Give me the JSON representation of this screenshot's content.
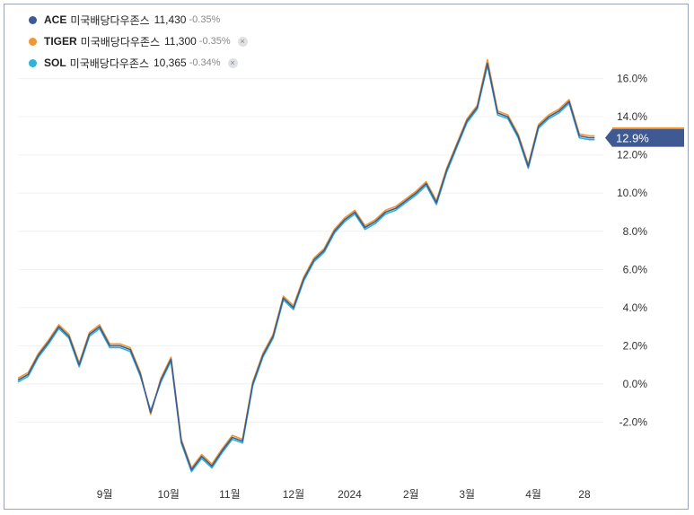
{
  "legend": [
    {
      "name": "ACE",
      "kname": "미국배당다우존스",
      "price": "11,430",
      "change": "-0.35%",
      "color": "#3f5a92",
      "removable": false
    },
    {
      "name": "TIGER",
      "kname": "미국배당다우존스",
      "price": "11,300",
      "change": "-0.35%",
      "color": "#f0972f",
      "removable": true
    },
    {
      "name": "SOL",
      "kname": "미국배당다우존스",
      "price": "10,365",
      "change": "-0.34%",
      "color": "#2fb3d6",
      "removable": true
    }
  ],
  "remove_glyph": "×",
  "current_label": "12.9%",
  "current_label_color": "#3f5a92",
  "chart_data": {
    "type": "line",
    "y_unit": "%",
    "y_ticks": [
      "16.0%",
      "14.0%",
      "12.0%",
      "10.0%",
      "8.0%",
      "6.0%",
      "4.0%",
      "2.0%",
      "0.0%",
      "-2.0%"
    ],
    "y_tick_values": [
      16,
      14,
      12,
      10,
      8,
      6,
      4,
      2,
      0,
      -2
    ],
    "ylim": [
      -4.8,
      17.3
    ],
    "x_ticks": [
      "9월",
      "10월",
      "11월",
      "12월",
      "2024",
      "2월",
      "3월",
      "4월",
      "28"
    ],
    "x_tick_values": [
      17,
      29.5,
      41.5,
      54,
      65,
      77,
      88,
      101,
      111
    ],
    "xlim": [
      0,
      114
    ],
    "grid": true,
    "series": [
      {
        "name": "ACE 미국배당다우존스",
        "color": "#3f5a92",
        "x": [
          0,
          2,
          4,
          6,
          8,
          10,
          12,
          14,
          16,
          18,
          20,
          22,
          24,
          26,
          28,
          30,
          32,
          34,
          36,
          38,
          40,
          42,
          44,
          46,
          48,
          50,
          52,
          54,
          56,
          58,
          60,
          62,
          64,
          66,
          68,
          70,
          72,
          74,
          76,
          78,
          80,
          82,
          84,
          86,
          88,
          90,
          92,
          94,
          96,
          98,
          100,
          102,
          104,
          106,
          108,
          110,
          112,
          113
        ],
        "y": [
          0.2,
          0.5,
          1.5,
          2.2,
          3.0,
          2.5,
          1.0,
          2.6,
          3.0,
          2.0,
          2.0,
          1.8,
          0.5,
          -1.5,
          0.2,
          1.3,
          -3.0,
          -4.5,
          -3.8,
          -4.3,
          -3.5,
          -2.8,
          -3.0,
          0.0,
          1.5,
          2.5,
          4.5,
          4.0,
          5.5,
          6.5,
          7.0,
          8.0,
          8.6,
          9.0,
          8.2,
          8.5,
          9.0,
          9.2,
          9.6,
          10.0,
          10.5,
          9.5,
          11.2,
          12.5,
          13.8,
          14.5,
          16.8,
          14.2,
          14.0,
          13.0,
          11.4,
          13.5,
          14.0,
          14.3,
          14.8,
          13.0,
          12.9,
          12.9
        ]
      },
      {
        "name": "TIGER 미국배당다우존스",
        "color": "#f0972f",
        "x": [
          0,
          2,
          4,
          6,
          8,
          10,
          12,
          14,
          16,
          18,
          20,
          22,
          24,
          26,
          28,
          30,
          32,
          34,
          36,
          38,
          40,
          42,
          44,
          46,
          48,
          50,
          52,
          54,
          56,
          58,
          60,
          62,
          64,
          66,
          68,
          70,
          72,
          74,
          76,
          78,
          80,
          82,
          84,
          86,
          88,
          90,
          92,
          94,
          96,
          98,
          100,
          102,
          104,
          106,
          108,
          110,
          112,
          113
        ],
        "y": [
          0.3,
          0.6,
          1.6,
          2.3,
          3.1,
          2.6,
          1.1,
          2.7,
          3.1,
          2.1,
          2.1,
          1.9,
          0.6,
          -1.6,
          0.3,
          1.4,
          -2.9,
          -4.4,
          -3.7,
          -4.2,
          -3.4,
          -2.7,
          -2.9,
          0.1,
          1.6,
          2.6,
          4.6,
          4.1,
          5.6,
          6.6,
          7.1,
          8.1,
          8.7,
          9.1,
          8.3,
          8.6,
          9.1,
          9.3,
          9.7,
          10.1,
          10.6,
          9.6,
          11.3,
          12.6,
          13.9,
          14.6,
          17.0,
          14.3,
          14.1,
          13.1,
          11.5,
          13.6,
          14.1,
          14.4,
          14.9,
          13.1,
          13.0,
          13.0
        ]
      },
      {
        "name": "SOL 미국배당다우존스",
        "color": "#2fb3d6",
        "x": [
          0,
          2,
          4,
          6,
          8,
          10,
          12,
          14,
          16,
          18,
          20,
          22,
          24,
          26,
          28,
          30,
          32,
          34,
          36,
          38,
          40,
          42,
          44,
          46,
          48,
          50,
          52,
          54,
          56,
          58,
          60,
          62,
          64,
          66,
          68,
          70,
          72,
          74,
          76,
          78,
          80,
          82,
          84,
          86,
          88,
          90,
          92,
          94,
          96,
          98,
          100,
          102,
          104,
          106,
          108,
          110,
          112,
          113
        ],
        "y": [
          0.1,
          0.4,
          1.4,
          2.1,
          2.9,
          2.4,
          0.9,
          2.5,
          2.9,
          1.9,
          1.9,
          1.7,
          0.4,
          -1.4,
          0.1,
          1.2,
          -3.1,
          -4.6,
          -3.9,
          -4.4,
          -3.6,
          -2.9,
          -3.1,
          -0.1,
          1.4,
          2.4,
          4.4,
          3.9,
          5.4,
          6.4,
          6.9,
          7.9,
          8.5,
          8.9,
          8.1,
          8.4,
          8.9,
          9.1,
          9.5,
          9.9,
          10.4,
          9.4,
          11.1,
          12.4,
          13.7,
          14.4,
          16.7,
          14.1,
          13.9,
          12.9,
          11.3,
          13.4,
          13.9,
          14.2,
          14.7,
          12.9,
          12.8,
          12.8
        ]
      }
    ]
  }
}
